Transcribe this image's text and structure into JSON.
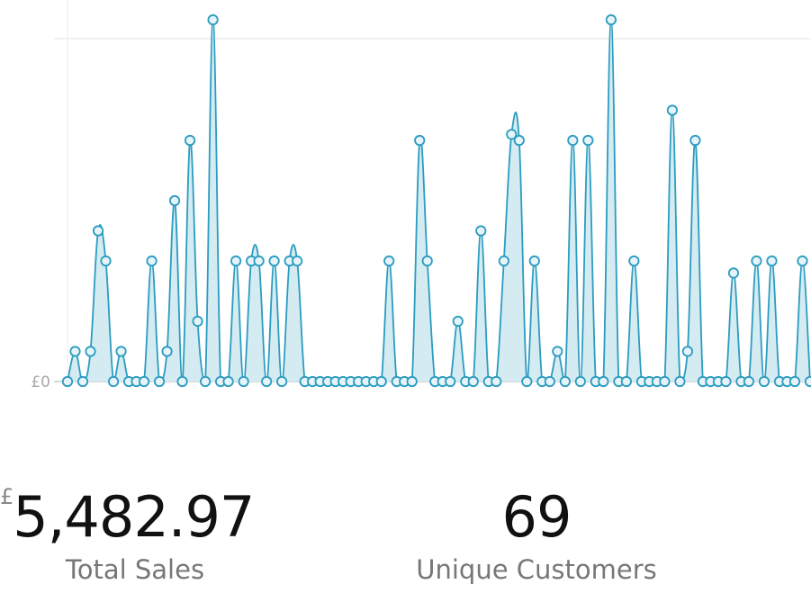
{
  "chart_data": {
    "type": "area",
    "color": "#2b9cc0",
    "fill": "#d5ebf2",
    "ylim": [
      0,
      12
    ],
    "yticks": [
      {
        "value": 0,
        "label": "£0"
      }
    ],
    "values": [
      0,
      1,
      0,
      1,
      5,
      4,
      0,
      1,
      0,
      0,
      0,
      4,
      0,
      1,
      6,
      0,
      8,
      2,
      0,
      12,
      0,
      0,
      4,
      0,
      4,
      4,
      0,
      4,
      0,
      4,
      4,
      0,
      0,
      0,
      0,
      0,
      0,
      0,
      0,
      0,
      0,
      0,
      4,
      0,
      0,
      0,
      8,
      4,
      0,
      0,
      0,
      2,
      0,
      0,
      5,
      0,
      0,
      4,
      8.2,
      8,
      0,
      4,
      0,
      0,
      1,
      0,
      8,
      0,
      8,
      0,
      0,
      12,
      0,
      0,
      4,
      0,
      0,
      0,
      0,
      9,
      0,
      1,
      8,
      0,
      0,
      0,
      0,
      3.6,
      0,
      0,
      4,
      0,
      4,
      0,
      0,
      0,
      4,
      0
    ]
  },
  "stats": [
    {
      "currency": "£",
      "value": "5,482.97",
      "label": "Total Sales"
    },
    {
      "value": "69",
      "label": "Unique Customers"
    }
  ]
}
